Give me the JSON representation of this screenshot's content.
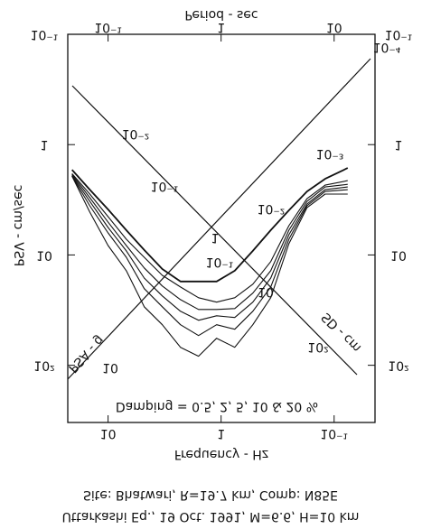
{
  "chart_data": {
    "type": "line",
    "xlabel": "Period - sec",
    "x2label": "Frequency - Hz",
    "ylabel": "PSV - cm/sec",
    "annotations": [
      "Damping = 0.5, 2, 5, 10 & 20 %",
      "10⁻²",
      "10⁻¹",
      "1",
      "10",
      "10²",
      "SD - cm",
      "10",
      "10⁻¹",
      "10⁻²",
      "10⁻³",
      "10⁻⁴",
      "PSA - g"
    ],
    "caption": [
      "Site: Bhatwari, R=19.7 km, Comp: N85E",
      "Uttarkashi Eq., 19 Oct. 1991, M=6.6, H=10 km"
    ],
    "x": [
      0.048,
      0.069,
      0.1,
      0.145,
      0.209,
      0.302,
      0.437,
      0.631,
      0.912,
      1.32,
      1.91,
      2.75,
      3.98,
      5.75,
      8.32,
      13.2
    ],
    "series": [
      {
        "color": "#111111",
        "values": [
          1.69,
          2.56,
          3.87,
          5.97,
          9.02,
          13.4,
          17.4,
          17.4,
          17.4,
          13.9,
          9.19,
          5.97,
          3.94,
          2.66,
          2.04,
          1.63
        ]
      },
      {
        "color": "#111111",
        "values": [
          1.93,
          4.09,
          8.21,
          13.9,
          29.5,
          42.9,
          68.7,
          82.8,
          56.9,
          68.7,
          42.9,
          24.4,
          7.91,
          3.73,
          2.81,
          2.81
        ]
      },
      {
        "color": "#111111",
        "values": [
          1.93,
          3.59,
          6.31,
          10.5,
          20.2,
          29.5,
          42.9,
          53.8,
          42.9,
          47.1,
          32.4,
          19.5,
          7.2,
          3.59,
          2.66,
          2.56
        ]
      },
      {
        "color": "#111111",
        "values": [
          1.9,
          3.27,
          5.64,
          9.19,
          16.2,
          23.5,
          32.4,
          39.1,
          35.6,
          36.9,
          26.8,
          16.2,
          6.55,
          3.46,
          2.56,
          2.42
        ]
      },
      {
        "color": "#111111",
        "values": [
          1.86,
          3.03,
          5.04,
          8.21,
          13.1,
          19.1,
          25.4,
          31.2,
          31.2,
          30.6,
          22.2,
          13.9,
          5.97,
          3.27,
          2.42,
          2.29
        ]
      },
      {
        "color": "#111111",
        "values": [
          1.83,
          2.81,
          4.5,
          7.2,
          10.5,
          15.3,
          19.5,
          24.4,
          26.8,
          24.4,
          18.4,
          11.5,
          5.43,
          3.09,
          2.33,
          2.12
        ]
      }
    ],
    "xlim": [
      0.044,
      23
    ],
    "xticks": [
      {
        "value": 0.1,
        "label": "10⁻¹"
      },
      1,
      10
    ],
    "x2ticks": [
      10,
      1,
      {
        "value": 0.1,
        "label": "10⁻¹"
      }
    ],
    "ylim": [
      0.1,
      330
    ],
    "yticks": [
      {
        "value": 0.1,
        "label": "10⁻¹"
      },
      1,
      10,
      {
        "value": 100,
        "label": "10²"
      }
    ],
    "log_x": true,
    "log_y": true
  }
}
